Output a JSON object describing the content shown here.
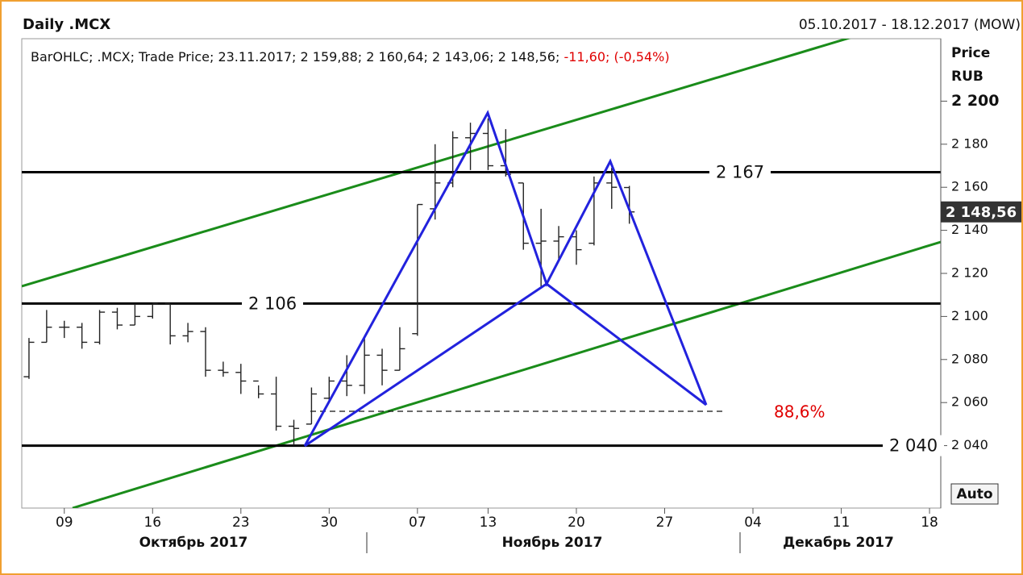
{
  "header": {
    "title": "Daily .MCX",
    "range": "05.10.2017 - 18.12.2017 (MOW)"
  },
  "info": {
    "text": "BarOHLC; .MCX; Trade Price; 23.11.2017; 2 159,88; 2 160,64; 2 143,06; 2 148,56;",
    "change": "-11,60; (-0,54%)"
  },
  "axis_title": [
    "Price",
    "RUB"
  ],
  "auto_button": "Auto",
  "months": [
    "Октябрь 2017",
    "Ноябрь 2017",
    "Декабрь 2017"
  ],
  "chart_data": {
    "type": "ohlc",
    "categories": [
      null,
      null,
      "09",
      null,
      null,
      null,
      null,
      "16",
      null,
      null,
      null,
      null,
      "23",
      null,
      null,
      null,
      null,
      "30",
      null,
      null,
      null,
      null,
      "07",
      null,
      null,
      null,
      "13",
      null,
      null,
      null,
      null,
      "20",
      null,
      null,
      null,
      null,
      "27",
      null,
      null,
      null,
      null,
      "04",
      null,
      null,
      null,
      null,
      "11",
      null,
      null,
      null,
      null,
      "18"
    ],
    "open": [
      2072,
      2088,
      2095,
      2095,
      2088,
      2102,
      2096,
      2100,
      2106,
      2091,
      2093,
      2075,
      2074,
      2070,
      2064,
      2049,
      2050,
      2062,
      2070,
      2068,
      2082,
      2075,
      2092,
      2150,
      2162,
      2183,
      2185,
      2170,
      2162,
      2134,
      2135,
      2137,
      2134,
      2162,
      2159.88,
      null,
      null,
      null,
      null,
      null,
      null,
      null,
      null,
      null,
      null,
      null,
      null,
      null,
      null,
      null,
      null,
      null
    ],
    "high": [
      2090,
      2103,
      2098,
      2097,
      2103,
      2104,
      2106,
      2106,
      2106,
      2097,
      2095,
      2079,
      2078,
      2068,
      2072,
      2052,
      2067,
      2072,
      2082,
      2090,
      2085,
      2095,
      2152,
      2180,
      2186,
      2190,
      2192,
      2187,
      2162,
      2150,
      2142,
      2140,
      2165,
      2169,
      2160.64,
      null,
      null,
      null,
      null,
      null,
      null,
      null,
      null,
      null,
      null,
      null,
      null,
      null,
      null,
      null,
      null,
      null
    ],
    "low": [
      2071,
      2088,
      2090,
      2085,
      2087,
      2094,
      2096,
      2099,
      2087,
      2088,
      2072,
      2072,
      2064,
      2062,
      2047,
      2040,
      2050,
      2060,
      2063,
      2064,
      2068,
      2075,
      2091,
      2145,
      2160,
      2168,
      2168,
      2165,
      2131,
      2113,
      2126,
      2124,
      2133,
      2150,
      2143.06,
      null,
      null,
      null,
      null,
      null,
      null,
      null,
      null,
      null,
      null,
      null,
      null,
      null,
      null,
      null,
      null,
      null
    ],
    "close": [
      2088,
      2095,
      2095,
      2088,
      2102,
      2096,
      2100,
      2106,
      2091,
      2093,
      2075,
      2074,
      2070,
      2064,
      2049,
      2048,
      2064,
      2070,
      2068,
      2082,
      2075,
      2085,
      2152,
      2162,
      2183,
      2185,
      2170,
      2166,
      2134,
      2135,
      2137,
      2131,
      2162,
      2160,
      2148.56,
      null,
      null,
      null,
      null,
      null,
      null,
      null,
      null,
      null,
      null,
      null,
      null,
      null,
      null,
      null,
      null,
      null
    ],
    "color": "#222222",
    "ylim": [
      2011,
      2229
    ],
    "yticks": [
      {
        "value": 2040,
        "label": "2 040"
      },
      {
        "value": 2060,
        "label": "2 060"
      },
      {
        "value": 2080,
        "label": "2 080"
      },
      {
        "value": 2100,
        "label": "2 100"
      },
      {
        "value": 2120,
        "label": "2 120"
      },
      {
        "value": 2140,
        "label": "2 140"
      },
      {
        "value": 2160,
        "label": "2 160"
      },
      {
        "value": 2180,
        "label": "2 180"
      },
      {
        "value": 2200,
        "label": "2 200"
      }
    ],
    "levels": [
      {
        "value": 2167,
        "label": "2 167"
      },
      {
        "value": 2106,
        "label": "2 106"
      },
      {
        "value": 2040,
        "label": "2 040"
      }
    ],
    "last_price": {
      "value": 2148.56,
      "label": "2 148,56"
    },
    "annotation": "88,6%"
  }
}
